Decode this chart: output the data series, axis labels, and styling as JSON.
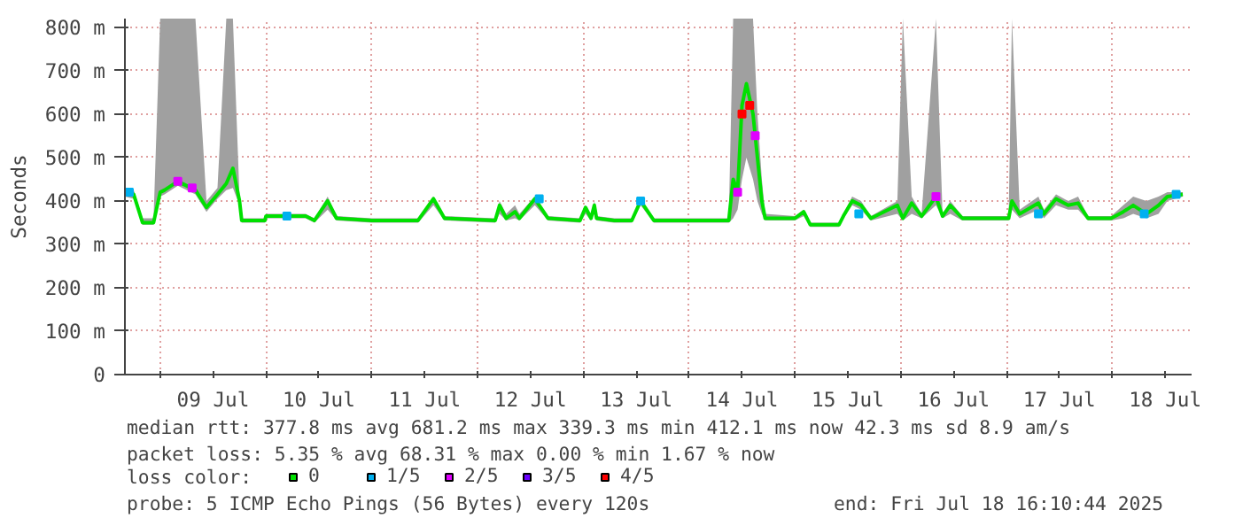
{
  "chart_data": {
    "type": "line",
    "ylabel": "Seconds",
    "xlim": [
      "2025-07-08T16:00",
      "2025-07-18T18:00"
    ],
    "ylim": [
      0,
      820
    ],
    "xticks": [
      {
        "value": "2025-07-09T00:00",
        "label": null
      },
      {
        "value": "2025-07-09T12:00",
        "label": "09 Jul"
      },
      {
        "value": "2025-07-10T00:00",
        "label": null
      },
      {
        "value": "2025-07-10T12:00",
        "label": "10 Jul"
      },
      {
        "value": "2025-07-11T00:00",
        "label": null
      },
      {
        "value": "2025-07-11T12:00",
        "label": "11 Jul"
      },
      {
        "value": "2025-07-12T00:00",
        "label": null
      },
      {
        "value": "2025-07-12T12:00",
        "label": "12 Jul"
      },
      {
        "value": "2025-07-13T00:00",
        "label": null
      },
      {
        "value": "2025-07-13T12:00",
        "label": "13 Jul"
      },
      {
        "value": "2025-07-14T00:00",
        "label": null
      },
      {
        "value": "2025-07-14T12:00",
        "label": "14 Jul"
      },
      {
        "value": "2025-07-15T00:00",
        "label": null
      },
      {
        "value": "2025-07-15T12:00",
        "label": "15 Jul"
      },
      {
        "value": "2025-07-16T00:00",
        "label": null
      },
      {
        "value": "2025-07-16T12:00",
        "label": "16 Jul"
      },
      {
        "value": "2025-07-17T00:00",
        "label": null
      },
      {
        "value": "2025-07-17T12:00",
        "label": "17 Jul"
      },
      {
        "value": "2025-07-18T00:00",
        "label": null
      },
      {
        "value": "2025-07-18T12:00",
        "label": "18 Jul"
      }
    ],
    "yticks": [
      0,
      {
        "value": 100,
        "label": "100 m"
      },
      {
        "value": 200,
        "label": "200 m"
      },
      {
        "value": 300,
        "label": "300 m"
      },
      {
        "value": 400,
        "label": "400 m"
      },
      {
        "value": 500,
        "label": "500 m"
      },
      {
        "value": 600,
        "label": "600 m"
      },
      {
        "value": 700,
        "label": "700 m"
      },
      {
        "value": 800,
        "label": "800 m"
      }
    ],
    "grid": true,
    "legend": "bottom",
    "legend_title": "loss color:",
    "series": [
      {
        "name": "0",
        "color": "#00e000",
        "x": [
          "2025-07-08T16:00",
          "2025-07-08T18:00",
          "2025-07-08T20:00",
          "2025-07-08T22:30",
          "2025-07-09T00:00",
          "2025-07-09T01:00",
          "2025-07-09T04:00",
          "2025-07-09T08:00",
          "2025-07-09T10:30",
          "2025-07-09T13:00",
          "2025-07-09T15:00",
          "2025-07-09T16:30",
          "2025-07-09T18:00",
          "2025-07-09T18:30",
          "2025-07-09T23:45",
          "2025-07-10T00:00",
          "2025-07-10T09:00",
          "2025-07-10T11:00",
          "2025-07-10T14:00",
          "2025-07-10T16:00",
          "2025-07-11T00:00",
          "2025-07-11T10:30",
          "2025-07-11T14:00",
          "2025-07-11T16:30",
          "2025-07-12T04:00",
          "2025-07-12T05:00",
          "2025-07-12T06:30",
          "2025-07-12T08:30",
          "2025-07-12T09:30",
          "2025-07-12T13:00",
          "2025-07-12T16:00",
          "2025-07-12T23:15",
          "2025-07-13T00:30",
          "2025-07-13T01:45",
          "2025-07-13T02:30",
          "2025-07-13T03:00",
          "2025-07-13T07:00",
          "2025-07-13T11:00",
          "2025-07-13T13:00",
          "2025-07-13T16:00",
          "2025-07-14T09:00",
          "2025-07-14T10:00",
          "2025-07-14T11:00",
          "2025-07-14T12:00",
          "2025-07-14T13:00",
          "2025-07-14T14:30",
          "2025-07-14T15:30",
          "2025-07-14T16:30",
          "2025-07-14T17:15",
          "2025-07-15T00:00",
          "2025-07-15T02:00",
          "2025-07-15T03:30",
          "2025-07-15T10:00",
          "2025-07-15T11:00",
          "2025-07-15T13:00",
          "2025-07-15T15:00",
          "2025-07-15T17:15",
          "2025-07-15T23:15",
          "2025-07-16T00:30",
          "2025-07-16T02:30",
          "2025-07-16T04:45",
          "2025-07-16T08:00",
          "2025-07-16T09:30",
          "2025-07-16T11:15",
          "2025-07-16T14:00",
          "2025-07-16T16:00",
          "2025-07-17T00:30",
          "2025-07-17T01:15",
          "2025-07-17T03:00",
          "2025-07-17T07:15",
          "2025-07-17T08:30",
          "2025-07-17T11:15",
          "2025-07-17T14:00",
          "2025-07-17T16:15",
          "2025-07-17T18:30",
          "2025-07-17T23:45",
          "2025-07-18T02:30",
          "2025-07-18T04:45",
          "2025-07-18T07:45",
          "2025-07-18T10:30",
          "2025-07-18T12:30",
          "2025-07-18T16:00"
        ],
        "values": [
          420,
          415,
          350,
          350,
          420,
          425,
          445,
          425,
          385,
          415,
          440,
          475,
          400,
          355,
          355,
          365,
          365,
          355,
          400,
          360,
          355,
          355,
          405,
          360,
          355,
          390,
          360,
          375,
          360,
          405,
          360,
          355,
          385,
          360,
          390,
          360,
          355,
          355,
          400,
          355,
          355,
          450,
          420,
          620,
          670,
          600,
          500,
          400,
          360,
          360,
          375,
          345,
          345,
          365,
          400,
          390,
          360,
          390,
          360,
          395,
          365,
          410,
          365,
          390,
          360,
          360,
          360,
          400,
          370,
          395,
          370,
          405,
          390,
          395,
          360,
          360,
          375,
          390,
          370,
          390,
          410,
          415
        ],
        "lower": [
          410,
          405,
          345,
          345,
          410,
          415,
          435,
          415,
          375,
          405,
          425,
          430,
          390,
          350,
          350,
          360,
          360,
          350,
          380,
          355,
          350,
          350,
          390,
          355,
          350,
          370,
          355,
          360,
          355,
          390,
          355,
          350,
          370,
          355,
          370,
          355,
          350,
          350,
          390,
          350,
          350,
          360,
          380,
          450,
          500,
          450,
          400,
          370,
          355,
          355,
          365,
          340,
          340,
          360,
          390,
          380,
          355,
          370,
          355,
          370,
          360,
          390,
          360,
          370,
          355,
          355,
          355,
          380,
          360,
          380,
          360,
          390,
          380,
          380,
          355,
          355,
          360,
          370,
          360,
          370,
          400,
          410
        ],
        "upper": [
          430,
          425,
          360,
          360,
          820,
          820,
          820,
          820,
          400,
          430,
          820,
          820,
          410,
          360,
          360,
          370,
          370,
          360,
          410,
          365,
          360,
          360,
          410,
          365,
          360,
          400,
          370,
          390,
          370,
          410,
          365,
          360,
          390,
          365,
          400,
          365,
          360,
          360,
          405,
          360,
          360,
          820,
          820,
          820,
          820,
          820,
          600,
          450,
          370,
          365,
          380,
          350,
          350,
          370,
          410,
          400,
          365,
          400,
          820,
          410,
          370,
          820,
          370,
          400,
          365,
          365,
          365,
          820,
          380,
          410,
          380,
          415,
          400,
          410,
          365,
          365,
          390,
          410,
          400,
          410,
          420,
          420
        ]
      },
      {
        "name": "1/5",
        "type": "scatter",
        "color": "#00b0f0",
        "x": [
          "2025-07-08T17:00",
          "2025-07-10T04:45",
          "2025-07-12T14:00",
          "2025-07-13T13:00",
          "2025-07-15T14:30",
          "2025-07-17T07:15",
          "2025-07-18T07:15",
          "2025-07-18T14:30"
        ],
        "values": [
          420,
          365,
          405,
          400,
          370,
          370,
          370,
          415
        ]
      },
      {
        "name": "2/5",
        "type": "scatter",
        "color": "#e000ff",
        "x": [
          "2025-07-09T04:00",
          "2025-07-09T07:15",
          "2025-07-14T11:00",
          "2025-07-14T15:00",
          "2025-07-16T08:00"
        ],
        "values": [
          445,
          430,
          420,
          550,
          410
        ]
      },
      {
        "name": "3/5",
        "type": "scatter",
        "color": "#6a00ff"
      },
      {
        "name": "4/5",
        "type": "scatter",
        "color": "#ff0000",
        "x": [
          "2025-07-14T12:00",
          "2025-07-14T13:45"
        ],
        "values": [
          600,
          620
        ]
      }
    ],
    "annotations": [
      "median rtt:  377.8 ms avg  681.2 ms max  339.3 ms min  412.1 ms now  42.3 ms sd  8.9   am/s",
      "packet loss: 5.35 % avg  68.31 % max  0.00 % min  1.67 % now",
      "probe:       5 ICMP Echo Pings (56 Bytes) every 120s",
      "end: Fri Jul 18 16:10:44 2025"
    ]
  }
}
